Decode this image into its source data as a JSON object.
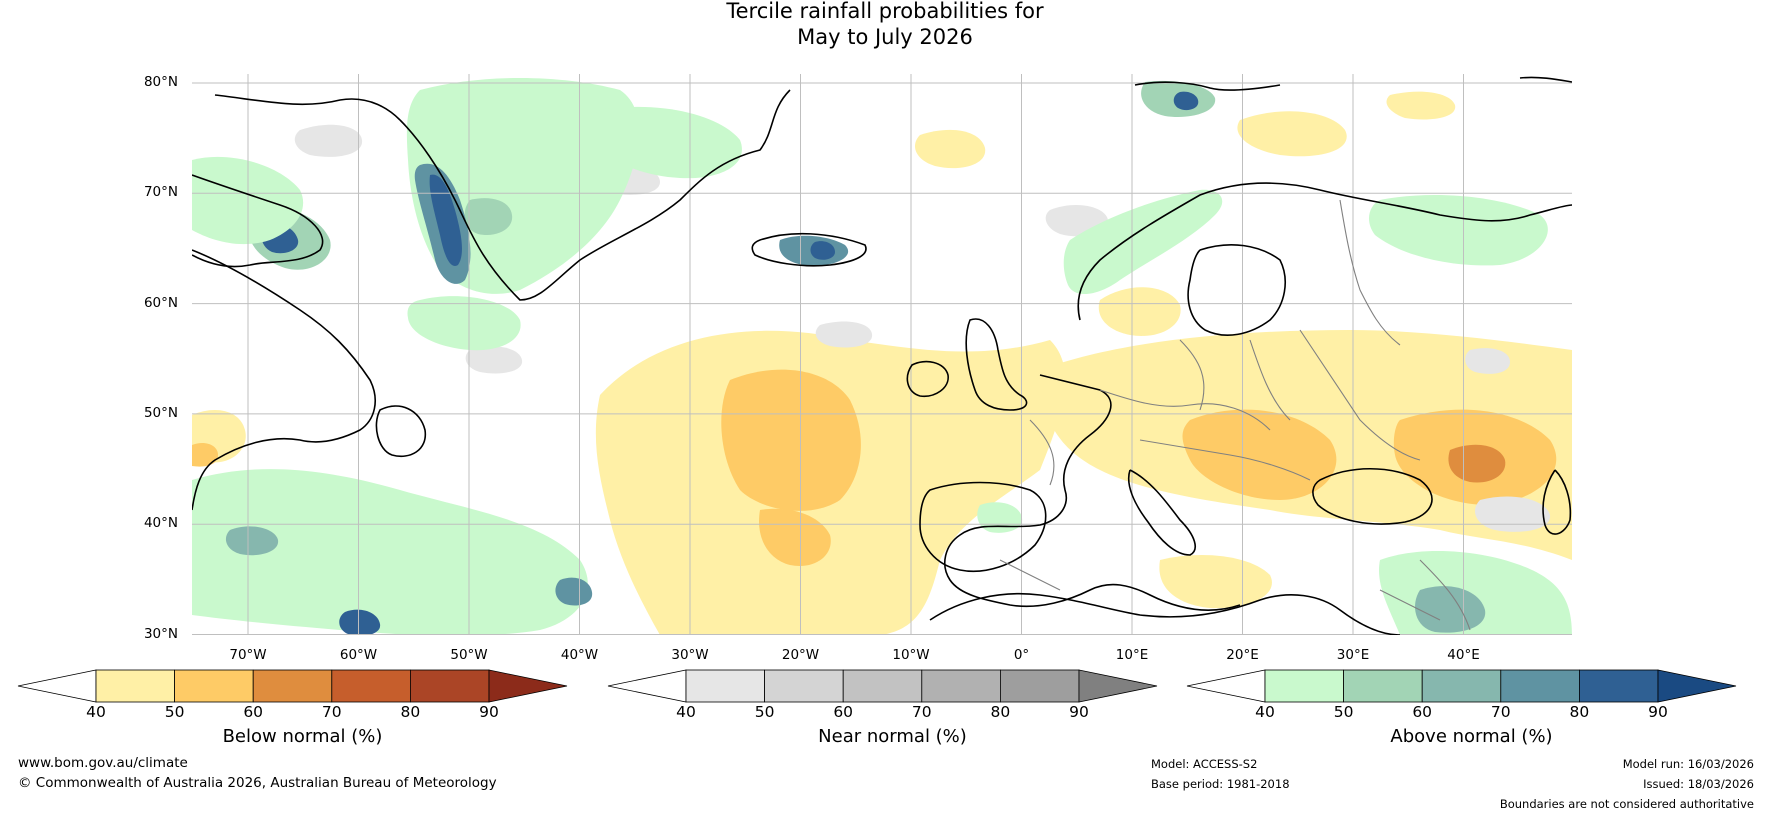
{
  "title": {
    "line1": "Tercile rainfall probabilities for",
    "line2": "May to July 2026"
  },
  "map": {
    "lat_labels": [
      "80°N",
      "70°N",
      "60°N",
      "50°N",
      "40°N",
      "30°N"
    ],
    "lon_labels": [
      "70°W",
      "60°W",
      "50°W",
      "40°W",
      "30°W",
      "20°W",
      "10°W",
      "0°",
      "10°E",
      "20°E",
      "30°E",
      "40°E"
    ],
    "lat_range": [
      30,
      81
    ],
    "lon_range": [
      -75,
      50
    ],
    "colors": {
      "below": [
        "#fff0a6",
        "#fecb66",
        "#df8d3e",
        "#c65e2c",
        "#ab4526",
        "#8c2b1a"
      ],
      "near": [
        "#e6e6e6",
        "#d4d4d4",
        "#c2c2c2",
        "#b1b1b1",
        "#9e9e9e",
        "#808080"
      ],
      "above": [
        "#c9f9cd",
        "#a2d4b5",
        "#86b7ae",
        "#5f93a2",
        "#2f6093",
        "#1a4a82"
      ]
    }
  },
  "colorbars": [
    {
      "label": "Below normal (%)",
      "ticks": [
        "40",
        "50",
        "60",
        "70",
        "80",
        "90"
      ]
    },
    {
      "label": "Near normal (%)",
      "ticks": [
        "40",
        "50",
        "60",
        "70",
        "80",
        "90"
      ]
    },
    {
      "label": "Above normal (%)",
      "ticks": [
        "40",
        "50",
        "60",
        "70",
        "80",
        "90"
      ]
    }
  ],
  "footer": {
    "website": "www.bom.gov.au/climate",
    "copyright": "© Commonwealth of Australia 2026, Australian Bureau of Meteorology",
    "model": "Model: ACCESS-S2",
    "base_period": "Base period: 1981-2018",
    "model_run": "Model run: 16/03/2026",
    "issued": "Issued: 18/03/2026",
    "disclaimer": "Boundaries are not considered authoritative"
  }
}
